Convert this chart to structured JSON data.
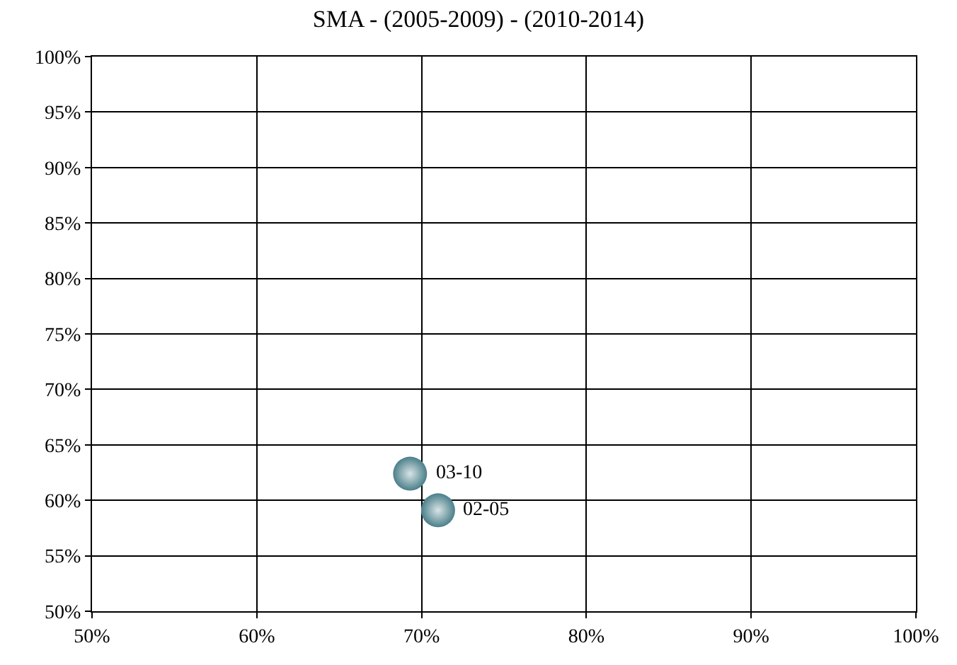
{
  "chart_data": {
    "type": "scatter",
    "title": "SMA - (2005-2009) - (2010-2014)",
    "x": [
      69.3,
      71.0
    ],
    "series": [
      {
        "color": "#4a7f8a",
        "values": [
          62.4,
          59.1
        ]
      }
    ],
    "marker": "circle",
    "grid": true,
    "xlim": [
      50,
      100
    ],
    "ylim": [
      50,
      100
    ],
    "xticks": [
      {
        "value": 50,
        "label": "50%"
      },
      {
        "value": 60,
        "label": "60%"
      },
      {
        "value": 70,
        "label": "70%"
      },
      {
        "value": 80,
        "label": "80%"
      },
      {
        "value": 90,
        "label": "90%"
      },
      {
        "value": 100,
        "label": "100%"
      }
    ],
    "yticks": [
      {
        "value": 50,
        "label": "50%"
      },
      {
        "value": 55,
        "label": "55%"
      },
      {
        "value": 60,
        "label": "60%"
      },
      {
        "value": 65,
        "label": "65%"
      },
      {
        "value": 70,
        "label": "70%"
      },
      {
        "value": 75,
        "label": "75%"
      },
      {
        "value": 80,
        "label": "80%"
      },
      {
        "value": 85,
        "label": "85%"
      },
      {
        "value": 90,
        "label": "90%"
      },
      {
        "value": 95,
        "label": "95%"
      },
      {
        "value": 100,
        "label": "100%"
      }
    ],
    "annotations": [
      {
        "text": "03-10",
        "x": 69.3,
        "y": 62.4
      },
      {
        "text": "02-05",
        "x": 71.0,
        "y": 59.1
      }
    ]
  }
}
